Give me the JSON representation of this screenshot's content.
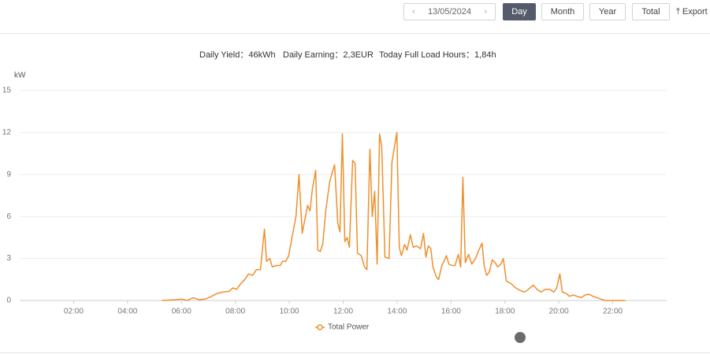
{
  "toolbar": {
    "date": "13/05/2024",
    "buttons": [
      "Day",
      "Month",
      "Year",
      "Total"
    ],
    "export": "Export"
  },
  "summary": [
    "Daily Yield：46kWh",
    "Daily Earning：2,3EUR",
    "Today Full Load Hours：1,84h"
  ],
  "chart_data": {
    "type": "line",
    "y_label": "kW",
    "x": [
      5.27,
      5.71,
      6.01,
      6.21,
      6.44,
      6.65,
      6.88,
      7.12,
      7.32,
      7.53,
      7.76,
      7.91,
      8.05,
      8.2,
      8.35,
      8.49,
      8.64,
      8.78,
      8.93,
      9.08,
      9.16,
      9.28,
      9.37,
      9.51,
      9.66,
      9.75,
      9.87,
      9.98,
      10.1,
      10.25,
      10.36,
      10.48,
      10.6,
      10.68,
      10.77,
      10.86,
      10.98,
      11.06,
      11.15,
      11.24,
      11.36,
      11.5,
      11.68,
      11.8,
      11.88,
      11.97,
      12.06,
      12.15,
      12.23,
      12.35,
      12.44,
      12.53,
      12.67,
      12.79,
      12.88,
      12.99,
      13.08,
      13.17,
      13.26,
      13.35,
      13.43,
      13.55,
      13.7,
      13.81,
      13.99,
      14.08,
      14.16,
      14.28,
      14.37,
      14.49,
      14.6,
      14.72,
      14.87,
      14.98,
      15.07,
      15.16,
      15.25,
      15.33,
      15.45,
      15.54,
      15.66,
      15.74,
      15.83,
      15.92,
      16.04,
      16.15,
      16.27,
      16.36,
      16.44,
      16.53,
      16.65,
      16.77,
      16.91,
      17.03,
      17.15,
      17.23,
      17.32,
      17.41,
      17.53,
      17.64,
      17.73,
      17.85,
      17.94,
      18.05,
      18.23,
      18.4,
      18.58,
      18.73,
      18.87,
      19.05,
      19.19,
      19.34,
      19.49,
      19.66,
      19.81,
      19.92,
      20.04,
      20.13,
      20.28,
      20.39,
      20.54,
      20.68,
      20.83,
      20.98,
      21.12,
      21.27,
      21.42,
      21.56,
      21.71,
      22.47
    ],
    "series": [
      {
        "name": "Total Power",
        "color": "#ef8f2c",
        "values": [
          0,
          0.05,
          0.1,
          0,
          0.2,
          0.05,
          0.1,
          0.3,
          0.5,
          0.6,
          0.65,
          0.9,
          0.8,
          1.2,
          1.5,
          1.9,
          1.8,
          2.2,
          2.2,
          5.1,
          2.8,
          3.0,
          2.4,
          2.5,
          2.5,
          2.8,
          2.8,
          3.2,
          4.5,
          6.0,
          9.0,
          4.8,
          6.0,
          6.8,
          6.4,
          8.0,
          9.3,
          3.6,
          3.5,
          4.0,
          6.5,
          8.5,
          9.7,
          5.5,
          4.9,
          11.9,
          4.2,
          4.5,
          3.8,
          10.0,
          9.8,
          3.4,
          3.2,
          2.4,
          2.2,
          10.8,
          6.0,
          7.8,
          2.6,
          11.9,
          11.0,
          3.1,
          3.0,
          9.9,
          12.0,
          3.8,
          3.2,
          4.0,
          3.6,
          4.7,
          3.8,
          3.9,
          3.7,
          4.8,
          3.1,
          3.9,
          3.7,
          2.4,
          1.7,
          1.5,
          2.5,
          2.8,
          3.2,
          2.6,
          2.5,
          2.5,
          3.3,
          2.4,
          8.8,
          2.7,
          3.3,
          2.6,
          3.0,
          3.6,
          4.1,
          2.5,
          1.8,
          2.0,
          2.9,
          2.7,
          2.4,
          2.6,
          3.0,
          1.4,
          1.2,
          0.9,
          0.7,
          0.6,
          0.8,
          1.1,
          0.8,
          0.6,
          0.8,
          0.8,
          0.6,
          0.9,
          1.9,
          0.6,
          0.5,
          0.3,
          0.4,
          0.3,
          0.2,
          0.4,
          0.45,
          0.3,
          0.2,
          0.1,
          0,
          0
        ]
      }
    ],
    "xlim": [
      0,
      24
    ],
    "xticks": [
      {
        "value": 2,
        "label": "02:00"
      },
      {
        "value": 4,
        "label": "04:00"
      },
      {
        "value": 6,
        "label": "06:00"
      },
      {
        "value": 8,
        "label": "08:00"
      },
      {
        "value": 10,
        "label": "10:00"
      },
      {
        "value": 12,
        "label": "12:00"
      },
      {
        "value": 14,
        "label": "14:00"
      },
      {
        "value": 16,
        "label": "16:00"
      },
      {
        "value": 18,
        "label": "18:00"
      },
      {
        "value": 20,
        "label": "20:00"
      },
      {
        "value": 22,
        "label": "22:00"
      }
    ],
    "ylim": [
      0,
      15
    ],
    "yticks": [
      0,
      3,
      6,
      9,
      12,
      15
    ],
    "grid": true,
    "legend": "bottom"
  }
}
